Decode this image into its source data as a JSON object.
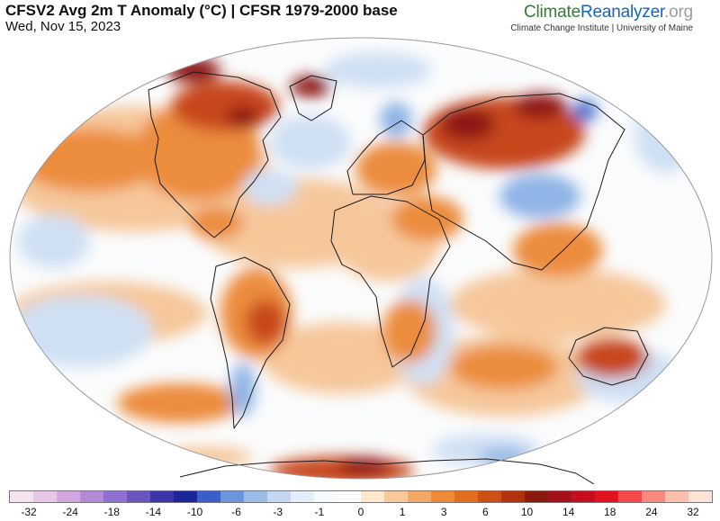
{
  "header": {
    "title": "CFSV2 Avg 2m T Anomaly (°C) | CFSR 1979-2000 base",
    "date": "Wed, Nov 15, 2023"
  },
  "brand": {
    "name_part1": "Climate",
    "name_part2": "Reanalyzer",
    "name_part3": ".org",
    "affiliation": "Climate Change Institute | University of Maine",
    "colors": {
      "part1": "#2e7d32",
      "part2": "#1565c0",
      "part3": "#9e9e9e"
    }
  },
  "map": {
    "variable": "2m air temperature anomaly",
    "projection": "Robinson-like elliptical world map",
    "colors": {
      "ocean_neutral": "#fbfcfd",
      "warm_light": "#f6c79b",
      "warm_mid": "#ec8c3c",
      "warm_strong": "#c7461b",
      "hot": "#8e1616",
      "cool_light": "#cfe0f4",
      "cool_mid": "#8fb4e6",
      "cool_strong": "#4a6fcf",
      "coastline": "#1a1a1a"
    }
  },
  "colorbar": {
    "swatches": [
      "#f5e3f2",
      "#e8c7ea",
      "#d4a7e1",
      "#b58ad9",
      "#8f6fcf",
      "#6a55c0",
      "#3b35a8",
      "#1c2596",
      "#3a5fc8",
      "#6b94dc",
      "#9dbde8",
      "#c4d9f1",
      "#e2eef9",
      "#f7fbfd",
      "#ffffff",
      "#fde7cf",
      "#f9c99b",
      "#f3a765",
      "#ec8a3a",
      "#e16d1f",
      "#cf4f12",
      "#b3320e",
      "#8a1a0e",
      "#a3121c",
      "#c40d1f",
      "#e3121f",
      "#f44a4a",
      "#f88a80",
      "#fbc0b0",
      "#fde2d8"
    ],
    "tick_labels": [
      "-32",
      "-24",
      "-18",
      "-14",
      "-10",
      "-6",
      "-3",
      "-1",
      "0",
      "1",
      "3",
      "6",
      "10",
      "14",
      "18",
      "24",
      "32"
    ]
  }
}
